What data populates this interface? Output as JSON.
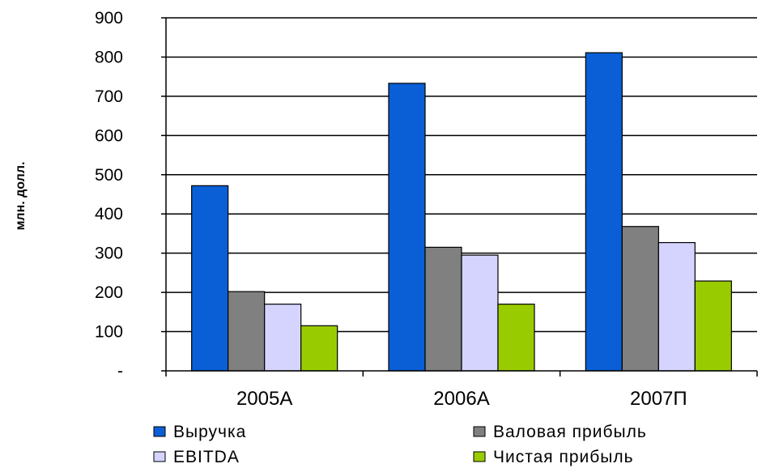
{
  "chart_data": {
    "type": "bar",
    "title": "",
    "xlabel": "",
    "ylabel": "млн. долл.",
    "ylim": [
      0,
      900
    ],
    "yticks": [
      {
        "value": 900,
        "label": "900"
      },
      {
        "value": 800,
        "label": "800"
      },
      {
        "value": 700,
        "label": "700"
      },
      {
        "value": 600,
        "label": "600"
      },
      {
        "value": 500,
        "label": "500"
      },
      {
        "value": 400,
        "label": "400"
      },
      {
        "value": 300,
        "label": "300"
      },
      {
        "value": 200,
        "label": "200"
      },
      {
        "value": 100,
        "label": "100"
      },
      {
        "value": 0,
        "label": "-"
      }
    ],
    "grid": true,
    "legend_position": "bottom",
    "categories": [
      "2005A",
      "2006A",
      "2007П"
    ],
    "series": [
      {
        "name": "Выручка",
        "color": "#0a5fd6",
        "values": [
          472,
          733,
          811
        ]
      },
      {
        "name": "Валовая прибыль",
        "color": "#808080",
        "values": [
          202,
          315,
          368
        ]
      },
      {
        "name": "EBITDA",
        "color": "#d4d4ff",
        "values": [
          170,
          295,
          327
        ]
      },
      {
        "name": "Чистая прибыль",
        "color": "#99cc00",
        "values": [
          115,
          170,
          229
        ]
      }
    ]
  }
}
